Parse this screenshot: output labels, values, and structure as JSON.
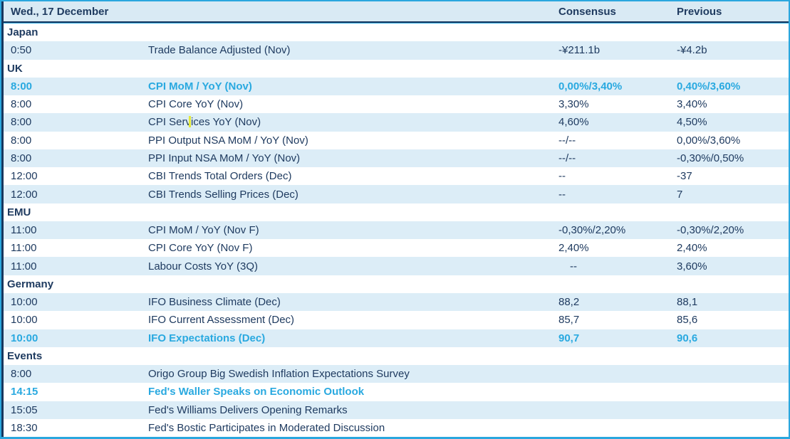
{
  "header": {
    "date": "Wed., 17 December",
    "consensus_label": "Consensus",
    "previous_label": "Previous"
  },
  "colors": {
    "accent_cyan": "#29A9E0",
    "navy_text": "#1F3B60",
    "stripe_blue": "#DCEDF7",
    "header_bg": "#D9EAF4",
    "outer_border_cyan": "#2AA7DE",
    "header_underline_navy": "#17375E",
    "text_cursor_yellow": "#E3E93C"
  },
  "rows": [
    {
      "type": "section",
      "label": "Japan"
    },
    {
      "type": "item",
      "time": "0:50",
      "event": "Trade Balance Adjusted (Nov)",
      "consensus": "-¥211.1b",
      "previous": "-¥4.2b",
      "highlight": false
    },
    {
      "type": "section",
      "label": "UK"
    },
    {
      "type": "item",
      "time": "8:00",
      "event": "CPI MoM / YoY (Nov)",
      "consensus": "0,00%/3,40%",
      "previous": "0,40%/3,60%",
      "highlight": true
    },
    {
      "type": "item",
      "time": "8:00",
      "event": "CPI Core YoY (Nov)",
      "consensus": "3,30%",
      "previous": "3,40%",
      "highlight": false
    },
    {
      "type": "item",
      "time": "8:00",
      "event": "CPI Services YoY (Nov)",
      "consensus": "4,60%",
      "previous": "4,50%",
      "highlight": false,
      "has_cursor": true
    },
    {
      "type": "item",
      "time": "8:00",
      "event": "PPI Output NSA MoM / YoY (Nov)",
      "consensus": "--/--",
      "previous": "0,00%/3,60%",
      "highlight": false
    },
    {
      "type": "item",
      "time": "8:00",
      "event": "PPI Input NSA MoM / YoY (Nov)",
      "consensus": "--/--",
      "previous": "-0,30%/0,50%",
      "highlight": false
    },
    {
      "type": "item",
      "time": "12:00",
      "event": "CBI Trends Total Orders (Dec)",
      "consensus": "--",
      "previous": "-37",
      "highlight": false
    },
    {
      "type": "item",
      "time": "12:00",
      "event": "CBI Trends Selling Prices (Dec)",
      "consensus": "--",
      "previous": "7",
      "highlight": false
    },
    {
      "type": "section",
      "label": "EMU"
    },
    {
      "type": "item",
      "time": "11:00",
      "event": "CPI MoM / YoY (Nov F)",
      "consensus": "-0,30%/2,20%",
      "previous": "-0,30%/2,20%",
      "highlight": false
    },
    {
      "type": "item",
      "time": "11:00",
      "event": "CPI Core YoY (Nov F)",
      "consensus": "2,40%",
      "previous": "2,40%",
      "highlight": false
    },
    {
      "type": "item",
      "time": "11:00",
      "event": "Labour Costs YoY (3Q)",
      "consensus": "--",
      "previous": "3,60%",
      "highlight": false,
      "consensus_indent": true
    },
    {
      "type": "section",
      "label": "Germany"
    },
    {
      "type": "item",
      "time": "10:00",
      "event": "IFO Business Climate (Dec)",
      "consensus": "88,2",
      "previous": "88,1",
      "highlight": false
    },
    {
      "type": "item",
      "time": "10:00",
      "event": "IFO Current Assessment (Dec)",
      "consensus": "85,7",
      "previous": "85,6",
      "highlight": false
    },
    {
      "type": "item",
      "time": "10:00",
      "event": "IFO Expectations (Dec)",
      "consensus": "90,7",
      "previous": "90,6",
      "highlight": true
    },
    {
      "type": "section",
      "label": "Events"
    },
    {
      "type": "item",
      "time": "8:00",
      "event": "Origo Group Big Swedish Inflation Expectations Survey",
      "consensus": "",
      "previous": "",
      "highlight": false
    },
    {
      "type": "item",
      "time": "14:15",
      "event": "Fed's Waller Speaks on Economic Outlook",
      "consensus": "",
      "previous": "",
      "highlight": true
    },
    {
      "type": "item",
      "time": "15:05",
      "event": "Fed's Williams Delivers Opening Remarks",
      "consensus": "",
      "previous": "",
      "highlight": false
    },
    {
      "type": "item",
      "time": "18:30",
      "event": "Fed's Bostic Participates in Moderated Discussion",
      "consensus": "",
      "previous": "",
      "highlight": false
    }
  ]
}
